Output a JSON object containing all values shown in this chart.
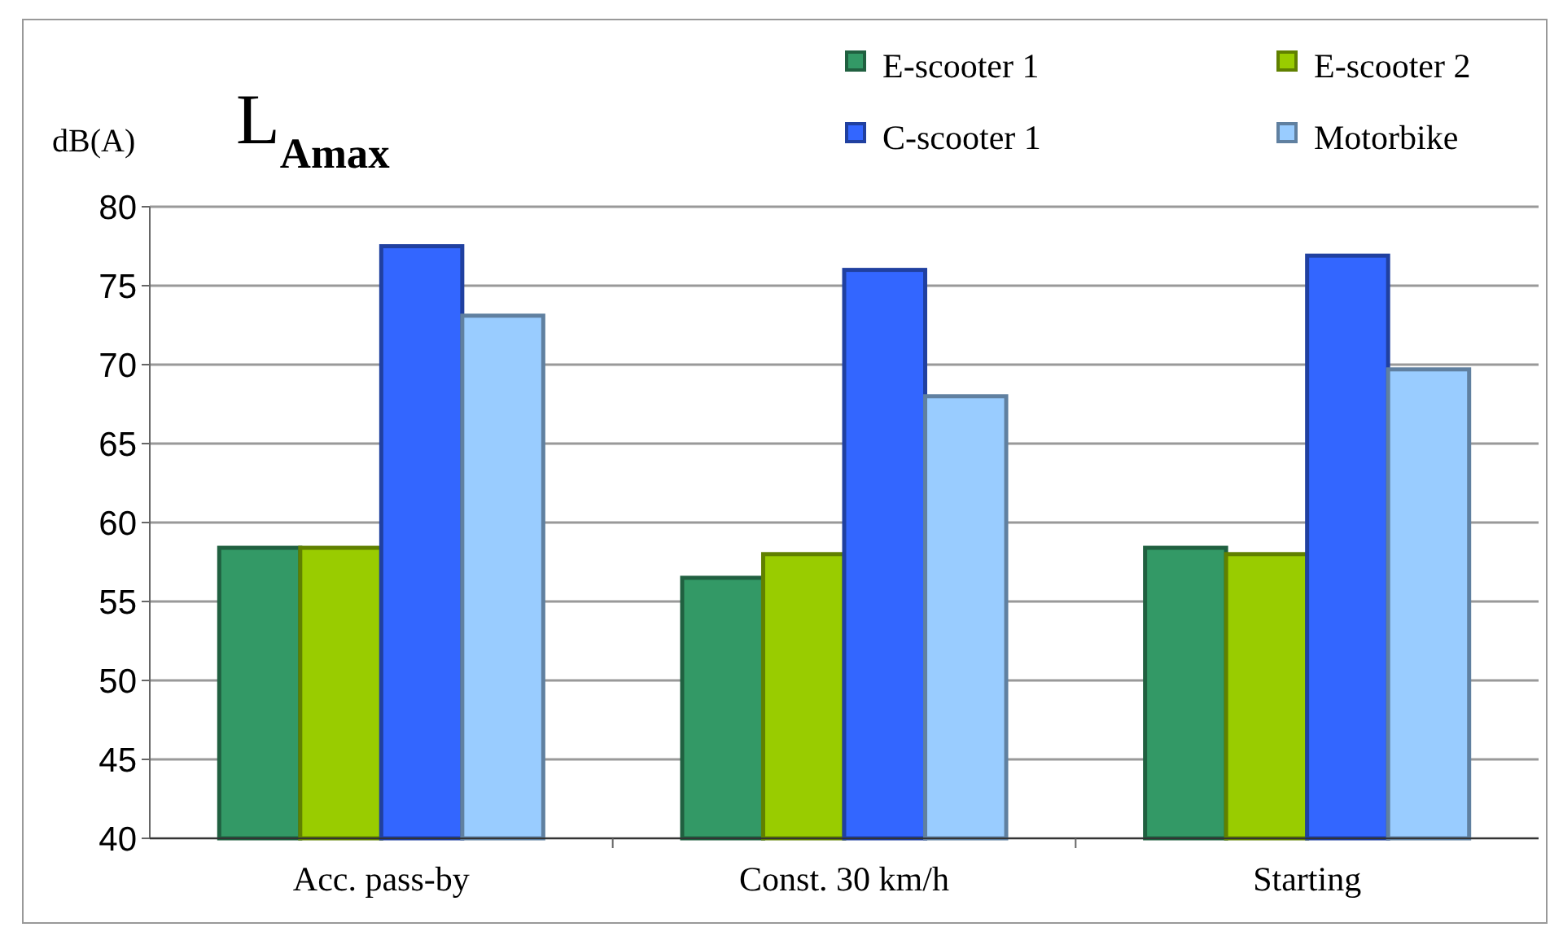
{
  "chart_data": {
    "type": "bar",
    "title": "L$_{Amax}$",
    "ylabel": "dB(A)",
    "categories": [
      "Acc. pass-by",
      "Const. 30 km/h",
      "Starting"
    ],
    "series": [
      {
        "name": "E-scooter 1",
        "color": "#339966",
        "values": [
          58.4,
          56.5,
          58.4
        ]
      },
      {
        "name": "E-scooter 2",
        "color": "#99cc00",
        "values": [
          58.4,
          58.0,
          58.0
        ]
      },
      {
        "name": "C-scooter 1",
        "color": "#3366ff",
        "values": [
          77.5,
          76.0,
          76.9
        ]
      },
      {
        "name": "Motorbike",
        "color": "#99ccff",
        "values": [
          73.1,
          68.0,
          69.7
        ]
      }
    ],
    "ylim": [
      40,
      80
    ],
    "yticks": [
      40,
      45,
      50,
      55,
      60,
      65,
      70,
      75,
      80
    ],
    "grid": "y",
    "legend": "top right"
  }
}
